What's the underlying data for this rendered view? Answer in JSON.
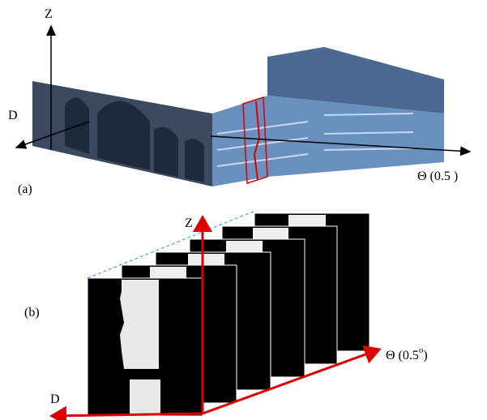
{
  "panel_a": {
    "label": "(a)",
    "z_axis": "Z",
    "d_axis": "D",
    "theta_axis": "Θ (0.5 )"
  },
  "panel_b": {
    "label": "(b)",
    "z_axis": "Z",
    "d_axis": "D",
    "theta_axis": "Θ (0.5",
    "theta_degree": "o",
    "theta_close": ")"
  }
}
